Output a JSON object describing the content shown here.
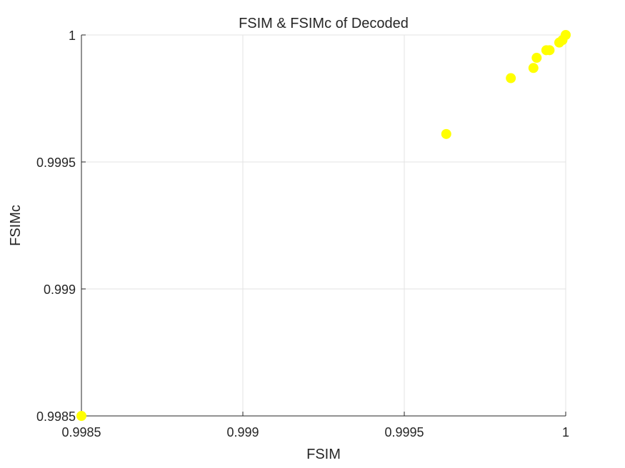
{
  "chart_data": {
    "type": "scatter",
    "title": "FSIM & FSIMc of Decoded",
    "xlabel": "FSIM",
    "ylabel": "FSIMc",
    "xlim": [
      0.9985,
      1
    ],
    "ylim": [
      0.9985,
      1
    ],
    "xticks": [
      0.9985,
      0.999,
      0.9995,
      1
    ],
    "yticks": [
      0.9985,
      0.999,
      0.9995,
      1
    ],
    "xtick_labels": [
      "0.9985",
      "0.999",
      "0.9995",
      "1"
    ],
    "ytick_labels": [
      "0.9985",
      "0.999",
      "0.9995",
      "1"
    ],
    "grid": true,
    "marker_color": "#ffff00",
    "points": [
      {
        "x": 0.9985,
        "y": 0.9985
      },
      {
        "x": 0.99963,
        "y": 0.99961
      },
      {
        "x": 0.99983,
        "y": 0.99983
      },
      {
        "x": 0.9999,
        "y": 0.99987
      },
      {
        "x": 0.99991,
        "y": 0.99991
      },
      {
        "x": 0.99994,
        "y": 0.99994
      },
      {
        "x": 0.99995,
        "y": 0.99994
      },
      {
        "x": 0.99998,
        "y": 0.99997
      },
      {
        "x": 0.99999,
        "y": 0.99998
      },
      {
        "x": 1.0,
        "y": 1.0
      }
    ]
  }
}
